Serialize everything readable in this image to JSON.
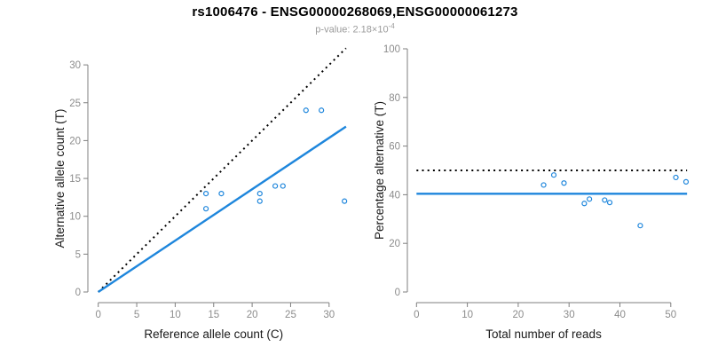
{
  "title": "rs1006476 - ENSG00000268069,ENSG00000061273",
  "subtitle": {
    "text": "p-value: 2.18×10",
    "exponent": "-4"
  },
  "colors": {
    "accent_blue": "#1E86DC",
    "dotted_black": "#000000",
    "axis_gray": "#7f7f7f",
    "tick_label_gray": "#8c8c8c",
    "axis_title_dark": "#1a1a1a",
    "title_black": "#000000",
    "subtitle_gray": "#9b9b9b"
  },
  "chart_data": [
    {
      "type": "scatter",
      "name": "allele-count-scatter",
      "xlabel": "Reference allele count (C)",
      "ylabel": "Alternative allele count (T)",
      "xlim": [
        0,
        32.5
      ],
      "ylim": [
        0,
        32.5
      ],
      "xticks": [
        0,
        5,
        10,
        15,
        20,
        25,
        30
      ],
      "yticks": [
        0,
        5,
        10,
        15,
        20,
        25,
        30
      ],
      "grid": false,
      "legend": false,
      "point_color": "#1E86DC",
      "points": [
        [
          14,
          13
        ],
        [
          14,
          11
        ],
        [
          16,
          13
        ],
        [
          21,
          13
        ],
        [
          21,
          12
        ],
        [
          23,
          14
        ],
        [
          24,
          14
        ],
        [
          27,
          24
        ],
        [
          29,
          24
        ],
        [
          32,
          12
        ]
      ],
      "lines": [
        {
          "name": "identity-line",
          "style": "dotted",
          "color": "#000000",
          "x1": 0,
          "y1": 0,
          "x2": 32.2,
          "y2": 32.2
        },
        {
          "name": "fit-line",
          "style": "solid",
          "color": "#1E86DC",
          "x1": 0,
          "y1": 0,
          "x2": 32.2,
          "y2": 21.85
        }
      ]
    },
    {
      "type": "scatter",
      "name": "percentage-scatter",
      "xlabel": "Total number of reads",
      "ylabel": "Percentage alternative (T)",
      "xlim": [
        0,
        53.5
      ],
      "ylim": [
        0,
        100
      ],
      "xticks": [
        0,
        10,
        20,
        30,
        40,
        50
      ],
      "yticks": [
        0,
        20,
        40,
        60,
        80,
        100
      ],
      "grid": false,
      "legend": false,
      "point_color": "#1E86DC",
      "points": [
        [
          25,
          44.0
        ],
        [
          27,
          48.1
        ],
        [
          29,
          44.8
        ],
        [
          33,
          36.4
        ],
        [
          34,
          38.2
        ],
        [
          37,
          37.8
        ],
        [
          38,
          36.8
        ],
        [
          44,
          27.3
        ],
        [
          51,
          47.1
        ],
        [
          53,
          45.3
        ]
      ],
      "lines": [
        {
          "name": "fifty-percent-line",
          "style": "dotted",
          "color": "#000000",
          "x1": 0,
          "y1": 50,
          "x2": 53.2,
          "y2": 50
        },
        {
          "name": "mean-percentage-line",
          "style": "solid",
          "color": "#1E86DC",
          "x1": 0,
          "y1": 40.4,
          "x2": 53.2,
          "y2": 40.4
        }
      ]
    }
  ]
}
